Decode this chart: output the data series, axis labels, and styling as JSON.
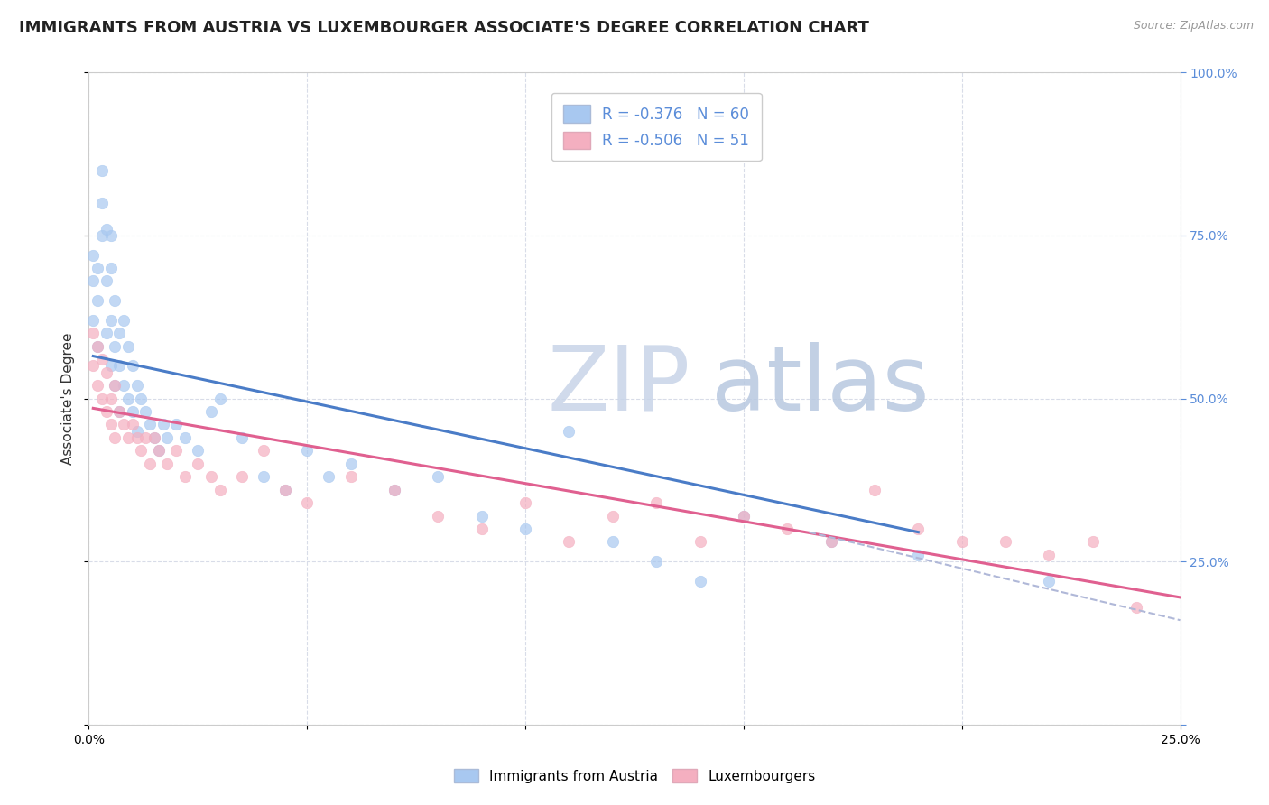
{
  "title": "IMMIGRANTS FROM AUSTRIA VS LUXEMBOURGER ASSOCIATE'S DEGREE CORRELATION CHART",
  "source_text": "Source: ZipAtlas.com",
  "ylabel": "Associate's Degree",
  "watermark_top": "ZIP",
  "watermark_bot": "atlas",
  "legend1_label": "Immigrants from Austria",
  "legend2_label": "Luxembourgers",
  "R1": -0.376,
  "N1": 60,
  "R2": -0.506,
  "N2": 51,
  "color1": "#a8c8f0",
  "color2": "#f4afc0",
  "line1_color": "#4a7cc7",
  "line2_color": "#e06090",
  "dashed_line_color": "#b0b8d8",
  "xmin": 0.0,
  "xmax": 0.25,
  "ymin": 0.0,
  "ymax": 1.0,
  "title_fontsize": 13,
  "axis_label_fontsize": 11,
  "tick_fontsize": 10,
  "scatter1_x": [
    0.001,
    0.001,
    0.001,
    0.002,
    0.002,
    0.002,
    0.003,
    0.003,
    0.003,
    0.004,
    0.004,
    0.004,
    0.005,
    0.005,
    0.005,
    0.005,
    0.006,
    0.006,
    0.006,
    0.007,
    0.007,
    0.007,
    0.008,
    0.008,
    0.009,
    0.009,
    0.01,
    0.01,
    0.011,
    0.011,
    0.012,
    0.013,
    0.014,
    0.015,
    0.016,
    0.017,
    0.018,
    0.02,
    0.022,
    0.025,
    0.028,
    0.03,
    0.035,
    0.04,
    0.045,
    0.05,
    0.055,
    0.06,
    0.07,
    0.08,
    0.09,
    0.1,
    0.11,
    0.12,
    0.13,
    0.14,
    0.15,
    0.17,
    0.19,
    0.22
  ],
  "scatter1_y": [
    0.62,
    0.68,
    0.72,
    0.58,
    0.65,
    0.7,
    0.75,
    0.8,
    0.85,
    0.76,
    0.68,
    0.6,
    0.55,
    0.62,
    0.7,
    0.75,
    0.65,
    0.58,
    0.52,
    0.6,
    0.55,
    0.48,
    0.62,
    0.52,
    0.58,
    0.5,
    0.55,
    0.48,
    0.52,
    0.45,
    0.5,
    0.48,
    0.46,
    0.44,
    0.42,
    0.46,
    0.44,
    0.46,
    0.44,
    0.42,
    0.48,
    0.5,
    0.44,
    0.38,
    0.36,
    0.42,
    0.38,
    0.4,
    0.36,
    0.38,
    0.32,
    0.3,
    0.45,
    0.28,
    0.25,
    0.22,
    0.32,
    0.28,
    0.26,
    0.22
  ],
  "scatter2_x": [
    0.001,
    0.001,
    0.002,
    0.002,
    0.003,
    0.003,
    0.004,
    0.004,
    0.005,
    0.005,
    0.006,
    0.006,
    0.007,
    0.008,
    0.009,
    0.01,
    0.011,
    0.012,
    0.013,
    0.014,
    0.015,
    0.016,
    0.018,
    0.02,
    0.022,
    0.025,
    0.028,
    0.03,
    0.035,
    0.04,
    0.045,
    0.05,
    0.06,
    0.07,
    0.08,
    0.09,
    0.1,
    0.11,
    0.12,
    0.13,
    0.14,
    0.15,
    0.16,
    0.17,
    0.18,
    0.19,
    0.2,
    0.21,
    0.22,
    0.23,
    0.24
  ],
  "scatter2_y": [
    0.55,
    0.6,
    0.52,
    0.58,
    0.5,
    0.56,
    0.48,
    0.54,
    0.46,
    0.5,
    0.52,
    0.44,
    0.48,
    0.46,
    0.44,
    0.46,
    0.44,
    0.42,
    0.44,
    0.4,
    0.44,
    0.42,
    0.4,
    0.42,
    0.38,
    0.4,
    0.38,
    0.36,
    0.38,
    0.42,
    0.36,
    0.34,
    0.38,
    0.36,
    0.32,
    0.3,
    0.34,
    0.28,
    0.32,
    0.34,
    0.28,
    0.32,
    0.3,
    0.28,
    0.36,
    0.3,
    0.28,
    0.28,
    0.26,
    0.28,
    0.18
  ],
  "trendline1_x": [
    0.001,
    0.19
  ],
  "trendline1_y": [
    0.565,
    0.295
  ],
  "trendline2_x": [
    0.001,
    0.25
  ],
  "trendline2_y": [
    0.485,
    0.195
  ],
  "dashed_line_x": [
    0.165,
    0.25
  ],
  "dashed_line_y": [
    0.295,
    0.16
  ],
  "yticks": [
    0.0,
    0.25,
    0.5,
    0.75,
    1.0
  ],
  "ytick_labels_right": [
    "",
    "25.0%",
    "50.0%",
    "75.0%",
    "100.0%"
  ],
  "xticks": [
    0.0,
    0.05,
    0.1,
    0.15,
    0.2,
    0.25
  ],
  "xtick_labels": [
    "0.0%",
    "",
    "",
    "",
    "",
    "25.0%"
  ],
  "grid_color": "#d8dce8",
  "background_color": "#ffffff",
  "watermark_color_zip": "#c8d4e8",
  "watermark_color_atlas": "#b8c8e0",
  "watermark_fontsize": 72,
  "right_tick_color": "#5b8dd9"
}
